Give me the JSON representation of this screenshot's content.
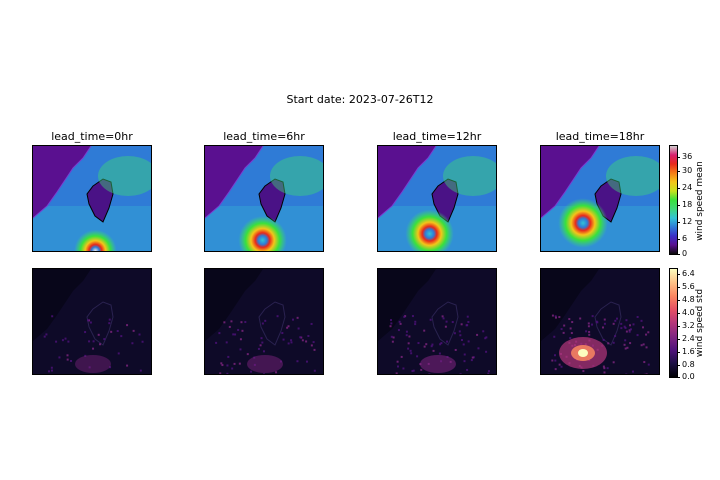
{
  "figure": {
    "suptitle": "Start date: 2023-07-26T12",
    "panel_titles": [
      "lead_time=0hr",
      "lead_time=6hr",
      "lead_time=12hr",
      "lead_time=18hr"
    ]
  },
  "colorbars": {
    "mean": {
      "label": "wind speed mean",
      "ticks": [
        "0",
        "6",
        "12",
        "18",
        "24",
        "30",
        "36"
      ],
      "colormap": [
        "#0b0b0b",
        "#5a1090",
        "#3a2fc8",
        "#2f7bd6",
        "#33c3d6",
        "#3fd87a",
        "#39e13c",
        "#c8e21e",
        "#f4c51a",
        "#f47c16",
        "#e8281b",
        "#d81e6e",
        "#d0d0d0"
      ]
    },
    "std": {
      "label": "wind speed std",
      "ticks": [
        "0.0",
        "0.8",
        "1.6",
        "2.4",
        "3.2",
        "4.0",
        "4.8",
        "5.6",
        "6.4"
      ],
      "colormap": [
        "#000004",
        "#1c1044",
        "#4f127b",
        "#812581",
        "#b5367a",
        "#e55064",
        "#fb8761",
        "#fec287",
        "#fcfdbf"
      ]
    }
  },
  "chart_data": [
    {
      "type": "heatmap",
      "row": "wind speed mean",
      "columns": [
        "lead_time=0hr",
        "lead_time=6hr",
        "lead_time=12hr",
        "lead_time=18hr"
      ],
      "colorbar_range": [
        0,
        38
      ],
      "peak_values": [
        36,
        36,
        36,
        36
      ],
      "storm_center_fraction": [
        [
          0.52,
          0.98
        ],
        [
          0.48,
          0.88
        ],
        [
          0.43,
          0.82
        ],
        [
          0.35,
          0.72
        ]
      ]
    },
    {
      "type": "heatmap",
      "row": "wind speed std",
      "columns": [
        "lead_time=0hr",
        "lead_time=6hr",
        "lead_time=12hr",
        "lead_time=18hr"
      ],
      "colorbar_range": [
        0,
        6.8
      ],
      "peak_values": [
        1.8,
        2.2,
        3.0,
        6.4
      ]
    }
  ]
}
